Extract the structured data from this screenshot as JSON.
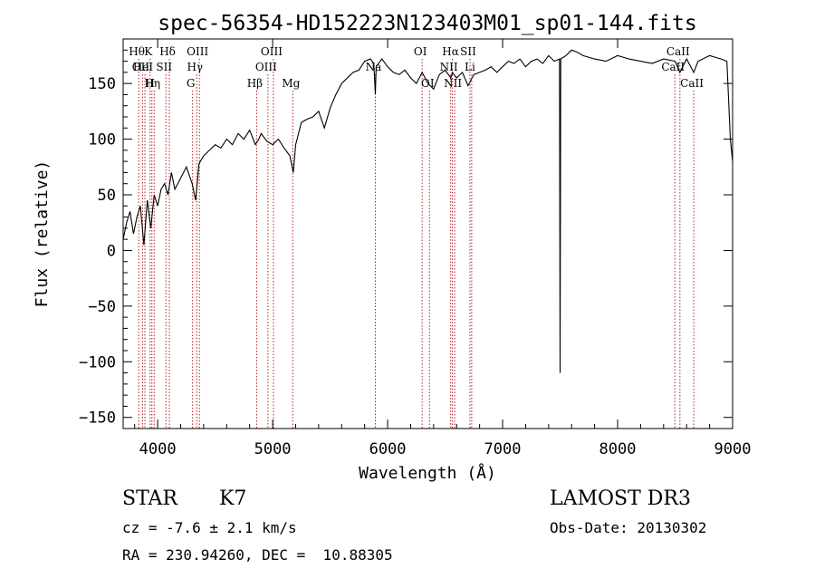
{
  "chart_data": {
    "type": "line",
    "title": "spec-56354-HD152223N123403M01_sp01-144.fits",
    "xlabel": "Wavelength (Å)",
    "ylabel": "Flux (relative)",
    "xlim": [
      3700,
      9000
    ],
    "ylim": [
      -160,
      190
    ],
    "x_ticks": [
      4000,
      5000,
      6000,
      7000,
      8000,
      9000
    ],
    "y_ticks": [
      -150,
      -100,
      -50,
      0,
      50,
      100,
      150
    ],
    "series": [
      {
        "name": "flux",
        "x": [
          3700,
          3730,
          3760,
          3790,
          3820,
          3850,
          3880,
          3910,
          3940,
          3970,
          4000,
          4030,
          4060,
          4090,
          4120,
          4150,
          4200,
          4250,
          4300,
          4330,
          4360,
          4400,
          4450,
          4500,
          4550,
          4600,
          4650,
          4700,
          4750,
          4800,
          4850,
          4880,
          4900,
          4950,
          5000,
          5050,
          5100,
          5150,
          5180,
          5200,
          5250,
          5300,
          5350,
          5400,
          5450,
          5500,
          5550,
          5600,
          5650,
          5700,
          5750,
          5800,
          5850,
          5880,
          5893,
          5900,
          5950,
          6000,
          6050,
          6100,
          6150,
          6200,
          6250,
          6300,
          6350,
          6400,
          6450,
          6500,
          6550,
          6563,
          6600,
          6650,
          6700,
          6750,
          6800,
          6850,
          6900,
          6950,
          7000,
          7050,
          7100,
          7150,
          7200,
          7250,
          7300,
          7350,
          7400,
          7450,
          7495,
          7500,
          7505,
          7550,
          7600,
          7650,
          7700,
          7800,
          7900,
          8000,
          8100,
          8200,
          8300,
          8400,
          8500,
          8542,
          8600,
          8662,
          8700,
          8800,
          8900,
          8950,
          8980,
          9000
        ],
        "y": [
          10,
          25,
          35,
          15,
          30,
          40,
          5,
          45,
          20,
          50,
          40,
          55,
          60,
          50,
          70,
          55,
          65,
          75,
          60,
          45,
          78,
          85,
          90,
          95,
          92,
          100,
          95,
          105,
          100,
          108,
          95,
          100,
          105,
          98,
          95,
          100,
          92,
          85,
          70,
          95,
          115,
          118,
          120,
          125,
          110,
          128,
          140,
          150,
          155,
          160,
          162,
          170,
          172,
          168,
          140,
          165,
          172,
          165,
          160,
          158,
          162,
          155,
          150,
          160,
          150,
          145,
          158,
          162,
          155,
          160,
          155,
          160,
          148,
          158,
          160,
          162,
          165,
          160,
          165,
          170,
          168,
          172,
          165,
          170,
          172,
          168,
          175,
          170,
          172,
          -110,
          172,
          175,
          180,
          178,
          175,
          172,
          170,
          175,
          172,
          170,
          168,
          172,
          170,
          160,
          172,
          160,
          170,
          175,
          172,
          170,
          100,
          80
        ]
      }
    ],
    "line_markers": [
      {
        "w": 3835,
        "label": "Hθ",
        "row": 0
      },
      {
        "w": 3869,
        "label": "OII",
        "row": 1
      },
      {
        "w": 3889,
        "label": "HeI",
        "row": 1
      },
      {
        "w": 3934,
        "label": "K",
        "row": 0
      },
      {
        "w": 3970,
        "label": "Hη",
        "row": 2
      },
      {
        "w": 3950,
        "label": "H",
        "row": 2
      },
      {
        "w": 4072,
        "label": "SII",
        "row": 1
      },
      {
        "w": 4102,
        "label": "Hδ",
        "row": 0
      },
      {
        "w": 4304,
        "label": "G",
        "row": 2
      },
      {
        "w": 4340,
        "label": "Hγ",
        "row": 1
      },
      {
        "w": 4363,
        "label": "OIII",
        "row": 0
      },
      {
        "w": 4861,
        "label": "Hβ",
        "row": 2
      },
      {
        "w": 4959,
        "label": "OIII",
        "row": 1
      },
      {
        "w": 5007,
        "label": "OIII",
        "row": 0
      },
      {
        "w": 5175,
        "label": "Mg",
        "row": 2
      },
      {
        "w": 5893,
        "label": "Na",
        "row": 1
      },
      {
        "w": 6300,
        "label": "OI",
        "row": 0
      },
      {
        "w": 6364,
        "label": "OI",
        "row": 2
      },
      {
        "w": 6548,
        "label": "NII",
        "row": 1
      },
      {
        "w": 6563,
        "label": "Hα",
        "row": 0
      },
      {
        "w": 6583,
        "label": "NII",
        "row": 2
      },
      {
        "w": 6716,
        "label": "SII",
        "row": 0
      },
      {
        "w": 6731,
        "label": "Li",
        "row": 1
      },
      {
        "w": 8498,
        "label": "CaII",
        "row": 1
      },
      {
        "w": 8542,
        "label": "CaII",
        "row": 0
      },
      {
        "w": 8662,
        "label": "CaII",
        "row": 2
      }
    ]
  },
  "info": {
    "class_label": "STAR",
    "subclass": "K7",
    "cz": "cz = -7.6 ± 2.1 km/s",
    "coords": "RA = 230.94260, DEC =  10.88305",
    "survey": "LAMOST DR3",
    "obs_date": "Obs-Date: 20130302"
  },
  "colors": {
    "spectrum": "#000000",
    "marker": "#b22222"
  }
}
